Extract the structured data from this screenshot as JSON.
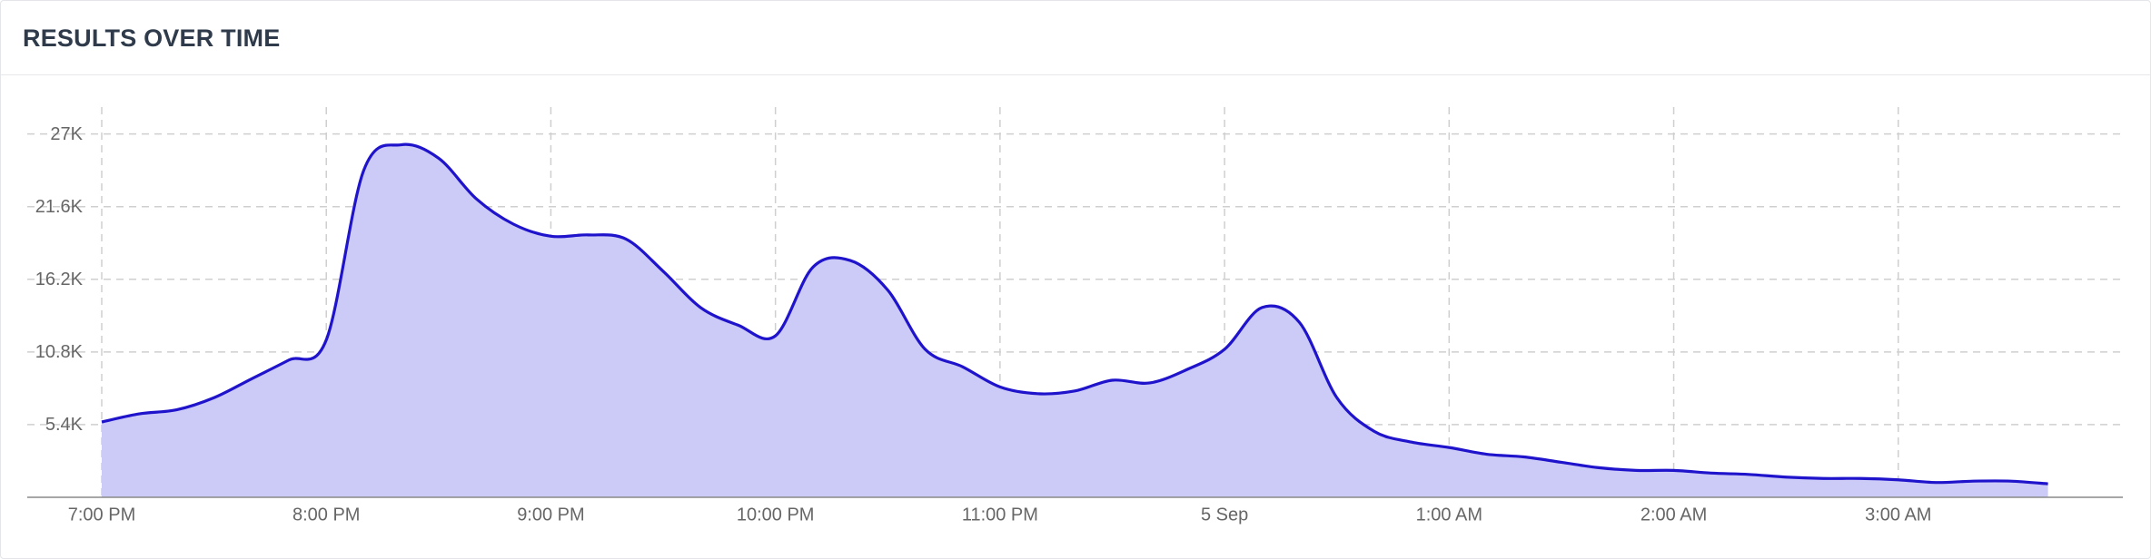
{
  "title": "RESULTS OVER TIME",
  "chart_data": {
    "type": "area",
    "x": [
      "19:00",
      "19:10",
      "19:20",
      "19:30",
      "19:40",
      "19:50",
      "20:00",
      "20:10",
      "20:20",
      "20:30",
      "20:40",
      "20:50",
      "21:00",
      "21:10",
      "21:20",
      "21:30",
      "21:40",
      "21:50",
      "22:00",
      "22:10",
      "22:20",
      "22:30",
      "22:40",
      "22:50",
      "23:00",
      "23:10",
      "23:20",
      "23:30",
      "23:40",
      "23:50",
      "00:00",
      "00:10",
      "00:20",
      "00:30",
      "00:40",
      "00:50",
      "01:00",
      "01:10",
      "01:20",
      "01:30",
      "01:40",
      "01:50",
      "02:00",
      "02:10",
      "02:20",
      "02:30",
      "02:40",
      "02:50",
      "03:00",
      "03:10",
      "03:20",
      "03:30",
      "03:40"
    ],
    "values": [
      5600,
      6200,
      6500,
      7400,
      8800,
      10200,
      11700,
      24300,
      26200,
      25200,
      22200,
      20300,
      19400,
      19500,
      19200,
      16800,
      14100,
      12800,
      12000,
      17100,
      17600,
      15400,
      11000,
      9700,
      8200,
      7700,
      7900,
      8700,
      8500,
      9500,
      11000,
      14100,
      13000,
      7400,
      4900,
      4100,
      3700,
      3200,
      3000,
      2600,
      2200,
      2000,
      2000,
      1800,
      1700,
      1500,
      1400,
      1400,
      1300,
      1100,
      1200,
      1200,
      1000
    ],
    "color": "#1f14cc",
    "fill": "#cccbf7",
    "xlim": [
      "19:00",
      "04:00"
    ],
    "xticks": [
      {
        "value": "19:00",
        "label": "7:00 PM"
      },
      {
        "value": "20:00",
        "label": "8:00 PM"
      },
      {
        "value": "21:00",
        "label": "9:00 PM"
      },
      {
        "value": "22:00",
        "label": "10:00 PM"
      },
      {
        "value": "23:00",
        "label": "11:00 PM"
      },
      {
        "value": "00:00",
        "label": "5 Sep"
      },
      {
        "value": "01:00",
        "label": "1:00 AM"
      },
      {
        "value": "02:00",
        "label": "2:00 AM"
      },
      {
        "value": "03:00",
        "label": "3:00 AM"
      }
    ],
    "ylim": [
      0,
      29000
    ],
    "yticks": [
      {
        "value": 5400,
        "label": "5.4K"
      },
      {
        "value": 10800,
        "label": "10.8K"
      },
      {
        "value": 16200,
        "label": "16.2K"
      },
      {
        "value": 21600,
        "label": "21.6K"
      },
      {
        "value": 27000,
        "label": "27K"
      }
    ],
    "grid": true
  }
}
